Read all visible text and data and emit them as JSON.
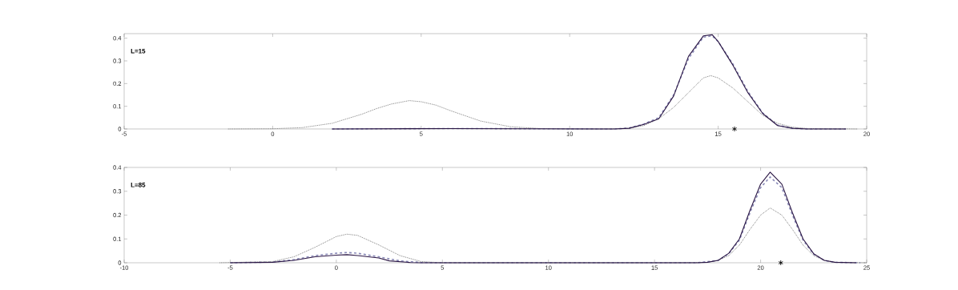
{
  "chart_data": [
    {
      "type": "line",
      "annotations": [
        "L=15"
      ],
      "xlim": [
        -5,
        20
      ],
      "ylim": [
        0,
        0.42
      ],
      "xticks": [
        -5,
        0,
        5,
        10,
        15,
        20
      ],
      "yticks": [
        0,
        0.1,
        0.2,
        0.3,
        0.4
      ],
      "grid": false,
      "series": [
        {
          "color": "#8a8ab8",
          "line_style": "dashed",
          "x": [
            2,
            6,
            11.5,
            12,
            12.5,
            13,
            13.5,
            14,
            14.5,
            14.8,
            15,
            15.5,
            16,
            16.5,
            17,
            17.5,
            18,
            19.3
          ],
          "values": [
            0,
            0.002,
            0,
            0.004,
            0.022,
            0.05,
            0.15,
            0.31,
            0.405,
            0.41,
            0.385,
            0.285,
            0.165,
            0.07,
            0.017,
            0.003,
            0,
            0
          ]
        },
        {
          "color": "#808080",
          "line_style": "dotted",
          "x": [
            -1.5,
            0,
            1,
            2,
            3,
            3.5,
            4,
            4.6,
            5,
            5.5,
            6,
            7,
            8,
            9,
            10,
            11,
            12,
            12.5,
            13,
            13.5,
            14,
            14.5,
            14.75,
            15,
            15.5,
            16,
            16.5,
            17,
            17.5,
            18,
            19.7
          ],
          "values": [
            0,
            0.001,
            0.006,
            0.025,
            0.065,
            0.09,
            0.11,
            0.125,
            0.12,
            0.105,
            0.08,
            0.035,
            0.01,
            0.002,
            0,
            0,
            0.003,
            0.015,
            0.045,
            0.095,
            0.16,
            0.225,
            0.235,
            0.225,
            0.18,
            0.12,
            0.06,
            0.025,
            0.008,
            0.002,
            0
          ]
        },
        {
          "color": "#2b1745",
          "line_style": "solid",
          "x": [
            2,
            6,
            11.5,
            12,
            12.5,
            13,
            13.5,
            14,
            14.5,
            14.8,
            15,
            15.5,
            16,
            16.5,
            17,
            17.5,
            18,
            19.3
          ],
          "values": [
            0,
            0.002,
            0,
            0.003,
            0.02,
            0.045,
            0.145,
            0.32,
            0.41,
            0.415,
            0.385,
            0.28,
            0.16,
            0.068,
            0.015,
            0.003,
            0,
            0
          ]
        },
        {
          "type": "scatter",
          "marker": "cross",
          "color": "#000000",
          "x": [
            15.55
          ],
          "values": [
            0
          ]
        }
      ]
    },
    {
      "type": "line",
      "annotations": [
        "L=85"
      ],
      "xlim": [
        -10,
        25
      ],
      "ylim": [
        0,
        0.4
      ],
      "xticks": [
        -10,
        -5,
        0,
        5,
        10,
        15,
        20,
        25
      ],
      "yticks": [
        0,
        0.1,
        0.2,
        0.3,
        0.4
      ],
      "grid": false,
      "series": [
        {
          "color": "#8a8ab8",
          "line_style": "dashed",
          "x": [
            -5,
            -3,
            -2,
            -1,
            0,
            0.5,
            1,
            2,
            3,
            4,
            5,
            17,
            18,
            18.5,
            19,
            19.5,
            20,
            20.45,
            21,
            21.5,
            22,
            22.5,
            23,
            23.5,
            24.7
          ],
          "values": [
            0,
            0.003,
            0.013,
            0.03,
            0.04,
            0.043,
            0.04,
            0.025,
            0.008,
            0.001,
            0,
            0,
            0.01,
            0.038,
            0.095,
            0.21,
            0.315,
            0.36,
            0.315,
            0.2,
            0.095,
            0.036,
            0.01,
            0.002,
            0
          ]
        },
        {
          "color": "#808080",
          "line_style": "dotted",
          "x": [
            -5.5,
            -3,
            -2,
            -1,
            0,
            0.5,
            1,
            2,
            3,
            4,
            5,
            16,
            17.5,
            18,
            18.5,
            19,
            19.5,
            20,
            20.45,
            21,
            21.5,
            22,
            22.5,
            23,
            23.5,
            25
          ],
          "values": [
            0,
            0.005,
            0.025,
            0.065,
            0.11,
            0.12,
            0.115,
            0.075,
            0.03,
            0.005,
            0,
            0,
            0.002,
            0.01,
            0.03,
            0.074,
            0.14,
            0.2,
            0.23,
            0.2,
            0.14,
            0.074,
            0.03,
            0.01,
            0.002,
            0
          ]
        },
        {
          "color": "#2b1745",
          "line_style": "solid",
          "x": [
            -5,
            -3,
            -2,
            -1,
            0,
            0.5,
            1,
            2,
            2.5,
            3.5,
            4,
            17,
            17.5,
            18,
            18.5,
            19,
            19.5,
            20,
            20.45,
            21,
            21.5,
            22,
            22.5,
            23,
            23.5,
            24.5
          ],
          "values": [
            0,
            0.002,
            0.01,
            0.025,
            0.032,
            0.034,
            0.03,
            0.02,
            0.008,
            0.001,
            0,
            0,
            0.002,
            0.01,
            0.04,
            0.1,
            0.22,
            0.33,
            0.38,
            0.33,
            0.21,
            0.1,
            0.038,
            0.01,
            0.002,
            0
          ]
        },
        {
          "type": "scatter",
          "marker": "cross",
          "color": "#000000",
          "x": [
            20.95
          ],
          "values": [
            0
          ]
        }
      ]
    }
  ]
}
